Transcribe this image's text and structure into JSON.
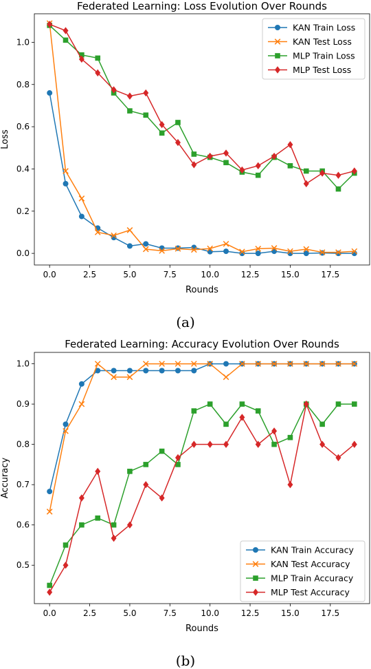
{
  "chart_data": [
    {
      "type": "line",
      "panel_caption": "(a)",
      "title": "Federated Learning: Loss Evolution Over Rounds",
      "xlabel": "Rounds",
      "ylabel": "Loss",
      "xlim": [
        -0.95,
        19.95
      ],
      "ylim": [
        -0.055,
        1.135
      ],
      "xticks": [
        0.0,
        2.5,
        5.0,
        7.5,
        10.0,
        12.5,
        15.0,
        17.5
      ],
      "xtick_labels": [
        "0.0",
        "2.5",
        "5.0",
        "7.5",
        "10.0",
        "12.5",
        "15.0",
        "17.5"
      ],
      "yticks": [
        0.0,
        0.2,
        0.4,
        0.6,
        0.8,
        1.0
      ],
      "ytick_labels": [
        "0.0",
        "0.2",
        "0.4",
        "0.6",
        "0.8",
        "1.0"
      ],
      "grid": false,
      "legend_position": "upper right",
      "x": [
        0,
        1,
        2,
        3,
        4,
        5,
        6,
        7,
        8,
        9,
        10,
        11,
        12,
        13,
        14,
        15,
        16,
        17,
        18,
        19
      ],
      "series": [
        {
          "name": "KAN Train Loss",
          "color": "#1f77b4",
          "marker": "circle",
          "values": [
            0.76,
            0.33,
            0.175,
            0.12,
            0.075,
            0.035,
            0.045,
            0.025,
            0.025,
            0.028,
            0.008,
            0.01,
            0.0,
            0.0,
            0.01,
            0.0,
            0.0,
            0.002,
            0.0,
            0.0
          ]
        },
        {
          "name": "KAN Test Loss",
          "color": "#ff7f0e",
          "marker": "x",
          "values": [
            1.09,
            0.39,
            0.26,
            0.1,
            0.085,
            0.11,
            0.02,
            0.012,
            0.022,
            0.017,
            0.023,
            0.045,
            0.008,
            0.022,
            0.025,
            0.01,
            0.02,
            0.005,
            0.005,
            0.01
          ]
        },
        {
          "name": "MLP Train Loss",
          "color": "#2ca02c",
          "marker": "square",
          "values": [
            1.08,
            1.01,
            0.94,
            0.925,
            0.76,
            0.675,
            0.655,
            0.57,
            0.62,
            0.47,
            0.455,
            0.43,
            0.385,
            0.37,
            0.455,
            0.415,
            0.39,
            0.39,
            0.305,
            0.38
          ]
        },
        {
          "name": "MLP Test Loss",
          "color": "#d62728",
          "marker": "diamond",
          "values": [
            1.085,
            1.055,
            0.92,
            0.855,
            0.775,
            0.745,
            0.76,
            0.61,
            0.525,
            0.42,
            0.46,
            0.475,
            0.395,
            0.415,
            0.46,
            0.515,
            0.33,
            0.38,
            0.37,
            0.39
          ]
        }
      ]
    },
    {
      "type": "line",
      "panel_caption": "(b)",
      "title": "Federated Learning: Accuracy Evolution Over Rounds",
      "xlabel": "Rounds",
      "ylabel": "Accuracy",
      "xlim": [
        -0.95,
        19.95
      ],
      "ylim": [
        0.4047,
        1.0283
      ],
      "xticks": [
        0.0,
        2.5,
        5.0,
        7.5,
        10.0,
        12.5,
        15.0,
        17.5
      ],
      "xtick_labels": [
        "0.0",
        "2.5",
        "5.0",
        "7.5",
        "10.0",
        "12.5",
        "15.0",
        "17.5"
      ],
      "yticks": [
        0.5,
        0.6,
        0.7,
        0.8,
        0.9,
        1.0
      ],
      "ytick_labels": [
        "0.5",
        "0.6",
        "0.7",
        "0.8",
        "0.9",
        "1.0"
      ],
      "grid": false,
      "legend_position": "lower right",
      "x": [
        0,
        1,
        2,
        3,
        4,
        5,
        6,
        7,
        8,
        9,
        10,
        11,
        12,
        13,
        14,
        15,
        16,
        17,
        18,
        19
      ],
      "series": [
        {
          "name": "KAN Train Accuracy",
          "color": "#1f77b4",
          "marker": "circle",
          "values": [
            0.683,
            0.85,
            0.95,
            0.983,
            0.983,
            0.983,
            0.983,
            0.983,
            0.983,
            0.983,
            1.0,
            1.0,
            1.0,
            1.0,
            1.0,
            1.0,
            1.0,
            1.0,
            1.0,
            1.0
          ]
        },
        {
          "name": "KAN Test Accuracy",
          "color": "#ff7f0e",
          "marker": "x",
          "values": [
            0.633,
            0.833,
            0.9,
            1.0,
            0.967,
            0.967,
            1.0,
            1.0,
            1.0,
            1.0,
            1.0,
            0.967,
            1.0,
            1.0,
            1.0,
            1.0,
            1.0,
            1.0,
            1.0,
            1.0
          ]
        },
        {
          "name": "MLP Train Accuracy",
          "color": "#2ca02c",
          "marker": "square",
          "values": [
            0.45,
            0.55,
            0.6,
            0.617,
            0.6,
            0.733,
            0.75,
            0.783,
            0.75,
            0.883,
            0.9,
            0.85,
            0.9,
            0.883,
            0.8,
            0.817,
            0.9,
            0.85,
            0.9,
            0.9
          ]
        },
        {
          "name": "MLP Test Accuracy",
          "color": "#d62728",
          "marker": "diamond",
          "values": [
            0.433,
            0.5,
            0.667,
            0.733,
            0.567,
            0.6,
            0.7,
            0.667,
            0.767,
            0.8,
            0.8,
            0.8,
            0.867,
            0.8,
            0.833,
            0.7,
            0.9,
            0.8,
            0.767,
            0.8
          ]
        }
      ]
    }
  ]
}
